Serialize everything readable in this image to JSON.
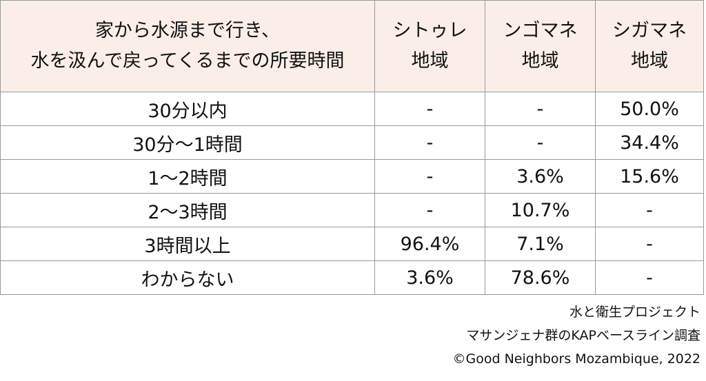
{
  "table": {
    "header": [
      [
        "家から水源まで行き、",
        "水を汲んで戻ってくるまでの所要時間"
      ],
      [
        "シトゥレ",
        "地域"
      ],
      [
        "ンゴマネ",
        "地域"
      ],
      [
        "シガマネ",
        "地域"
      ]
    ],
    "rows": [
      [
        "30分以内",
        "-",
        "-",
        "50.0%"
      ],
      [
        "30分～1時間",
        "-",
        "-",
        "34.4%"
      ],
      [
        "1～2時間",
        "-",
        "3.6%",
        "15.6%"
      ],
      [
        "2～3時間",
        "-",
        "10.7%",
        "-"
      ],
      [
        "3時間以上",
        "96.4%",
        "7.1%",
        "-"
      ],
      [
        "わからない",
        "3.6%",
        "78.6%",
        "-"
      ]
    ]
  },
  "footer": [
    "水と衛生プロジェクト",
    "マサンジェナ群のKAPベースライン調査",
    "©Good Neighbors Mozambique, 2022"
  ]
}
